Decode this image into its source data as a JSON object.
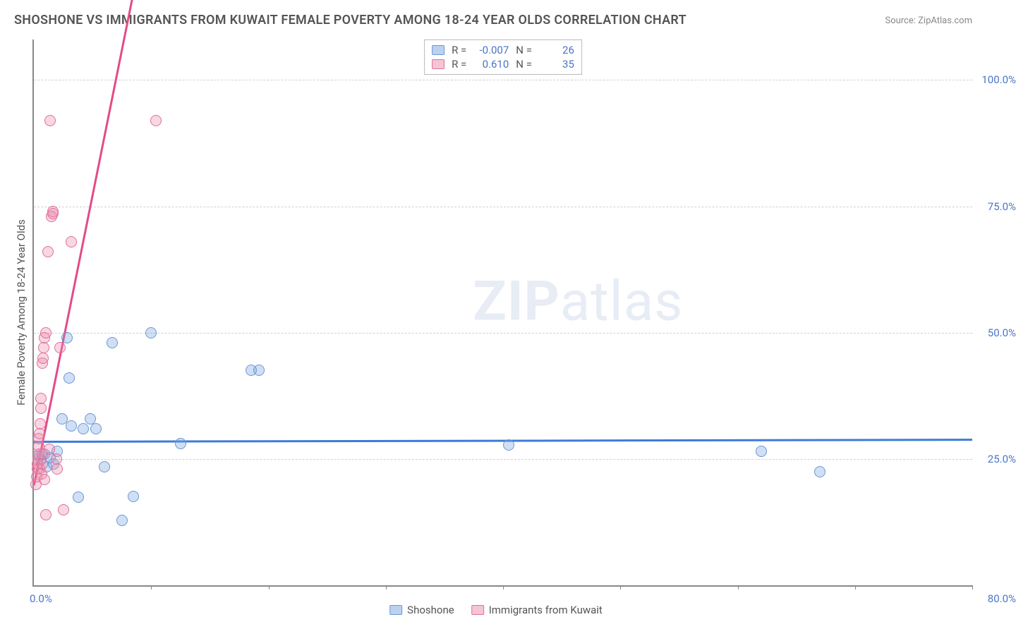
{
  "title": "SHOSHONE VS IMMIGRANTS FROM KUWAIT FEMALE POVERTY AMONG 18-24 YEAR OLDS CORRELATION CHART",
  "source": "Source: ZipAtlas.com",
  "ylabel": "Female Poverty Among 18-24 Year Olds",
  "watermark_a": "ZIP",
  "watermark_b": "atlas",
  "chart": {
    "type": "scatter",
    "xlim": [
      0,
      80
    ],
    "ylim": [
      0,
      108
    ],
    "xticks": [
      0,
      10,
      20,
      30,
      40,
      50,
      60,
      70,
      80
    ],
    "yticks": [
      25,
      50,
      75,
      100
    ],
    "xtick_labels": {
      "0": "0.0%",
      "80": "80.0%"
    },
    "ytick_labels": {
      "25": "25.0%",
      "50": "50.0%",
      "75": "75.0%",
      "100": "100.0%"
    },
    "grid_color": "#d0d0d0",
    "axis_color": "#888888",
    "background_color": "#ffffff",
    "label_color": "#4a76c7",
    "marker_radius": 8,
    "series": [
      {
        "key": "shoshone",
        "label": "Shoshone",
        "color_fill": "rgba(119,163,220,0.35)",
        "color_stroke": "#6a98d6",
        "R": "-0.007",
        "N": "26",
        "trend": {
          "slope": 0.005,
          "intercept": 28.6,
          "color": "#3d7bd9",
          "width": 2.5
        },
        "points": [
          [
            0.4,
            25.5
          ],
          [
            0.6,
            24.8
          ],
          [
            0.9,
            26
          ],
          [
            1.1,
            23.5
          ],
          [
            1.4,
            25.2
          ],
          [
            1.7,
            24.0
          ],
          [
            2.0,
            26.5
          ],
          [
            2.4,
            33
          ],
          [
            3.0,
            41
          ],
          [
            3.2,
            31.5
          ],
          [
            3.8,
            17.5
          ],
          [
            4.2,
            31
          ],
          [
            4.8,
            33
          ],
          [
            5.3,
            31
          ],
          [
            6.0,
            23.5
          ],
          [
            6.7,
            48
          ],
          [
            7.5,
            12.8
          ],
          [
            8.5,
            17.6
          ],
          [
            10.0,
            50
          ],
          [
            12.5,
            28
          ],
          [
            18.5,
            42.5
          ],
          [
            19.2,
            42.5
          ],
          [
            40.5,
            27.8
          ],
          [
            62,
            26.5
          ],
          [
            67,
            22.5
          ],
          [
            2.8,
            49
          ]
        ]
      },
      {
        "key": "kuwait",
        "label": "Immigrants from Kuwait",
        "color_fill": "rgba(235,140,172,0.35)",
        "color_stroke": "#e06f9b",
        "R": "0.610",
        "N": "35",
        "trend": {
          "slope": 11.5,
          "intercept": 20,
          "color": "#e34b86",
          "width": 2.5
        },
        "points": [
          [
            0.2,
            20
          ],
          [
            0.25,
            21.5
          ],
          [
            0.3,
            23
          ],
          [
            0.3,
            24
          ],
          [
            0.35,
            25
          ],
          [
            0.4,
            26
          ],
          [
            0.4,
            27.5
          ],
          [
            0.45,
            29
          ],
          [
            0.5,
            30
          ],
          [
            0.5,
            23
          ],
          [
            0.55,
            32
          ],
          [
            0.6,
            35
          ],
          [
            0.6,
            37
          ],
          [
            0.65,
            22
          ],
          [
            0.7,
            24
          ],
          [
            0.7,
            44
          ],
          [
            0.75,
            26
          ],
          [
            0.8,
            45
          ],
          [
            0.85,
            47
          ],
          [
            0.9,
            49
          ],
          [
            0.9,
            21
          ],
          [
            1.0,
            50
          ],
          [
            1.0,
            14
          ],
          [
            1.2,
            66
          ],
          [
            1.3,
            27
          ],
          [
            1.5,
            73
          ],
          [
            1.6,
            74
          ],
          [
            1.6,
            73.5
          ],
          [
            1.9,
            25
          ],
          [
            2.2,
            47
          ],
          [
            2.5,
            15
          ],
          [
            3.2,
            68
          ],
          [
            1.4,
            92
          ],
          [
            2.0,
            23
          ],
          [
            10.4,
            92
          ]
        ]
      }
    ]
  },
  "legend_top": {
    "r_label": "R =",
    "n_label": "N ="
  },
  "legend_bottom": [
    {
      "series": 0
    },
    {
      "series": 1
    }
  ]
}
